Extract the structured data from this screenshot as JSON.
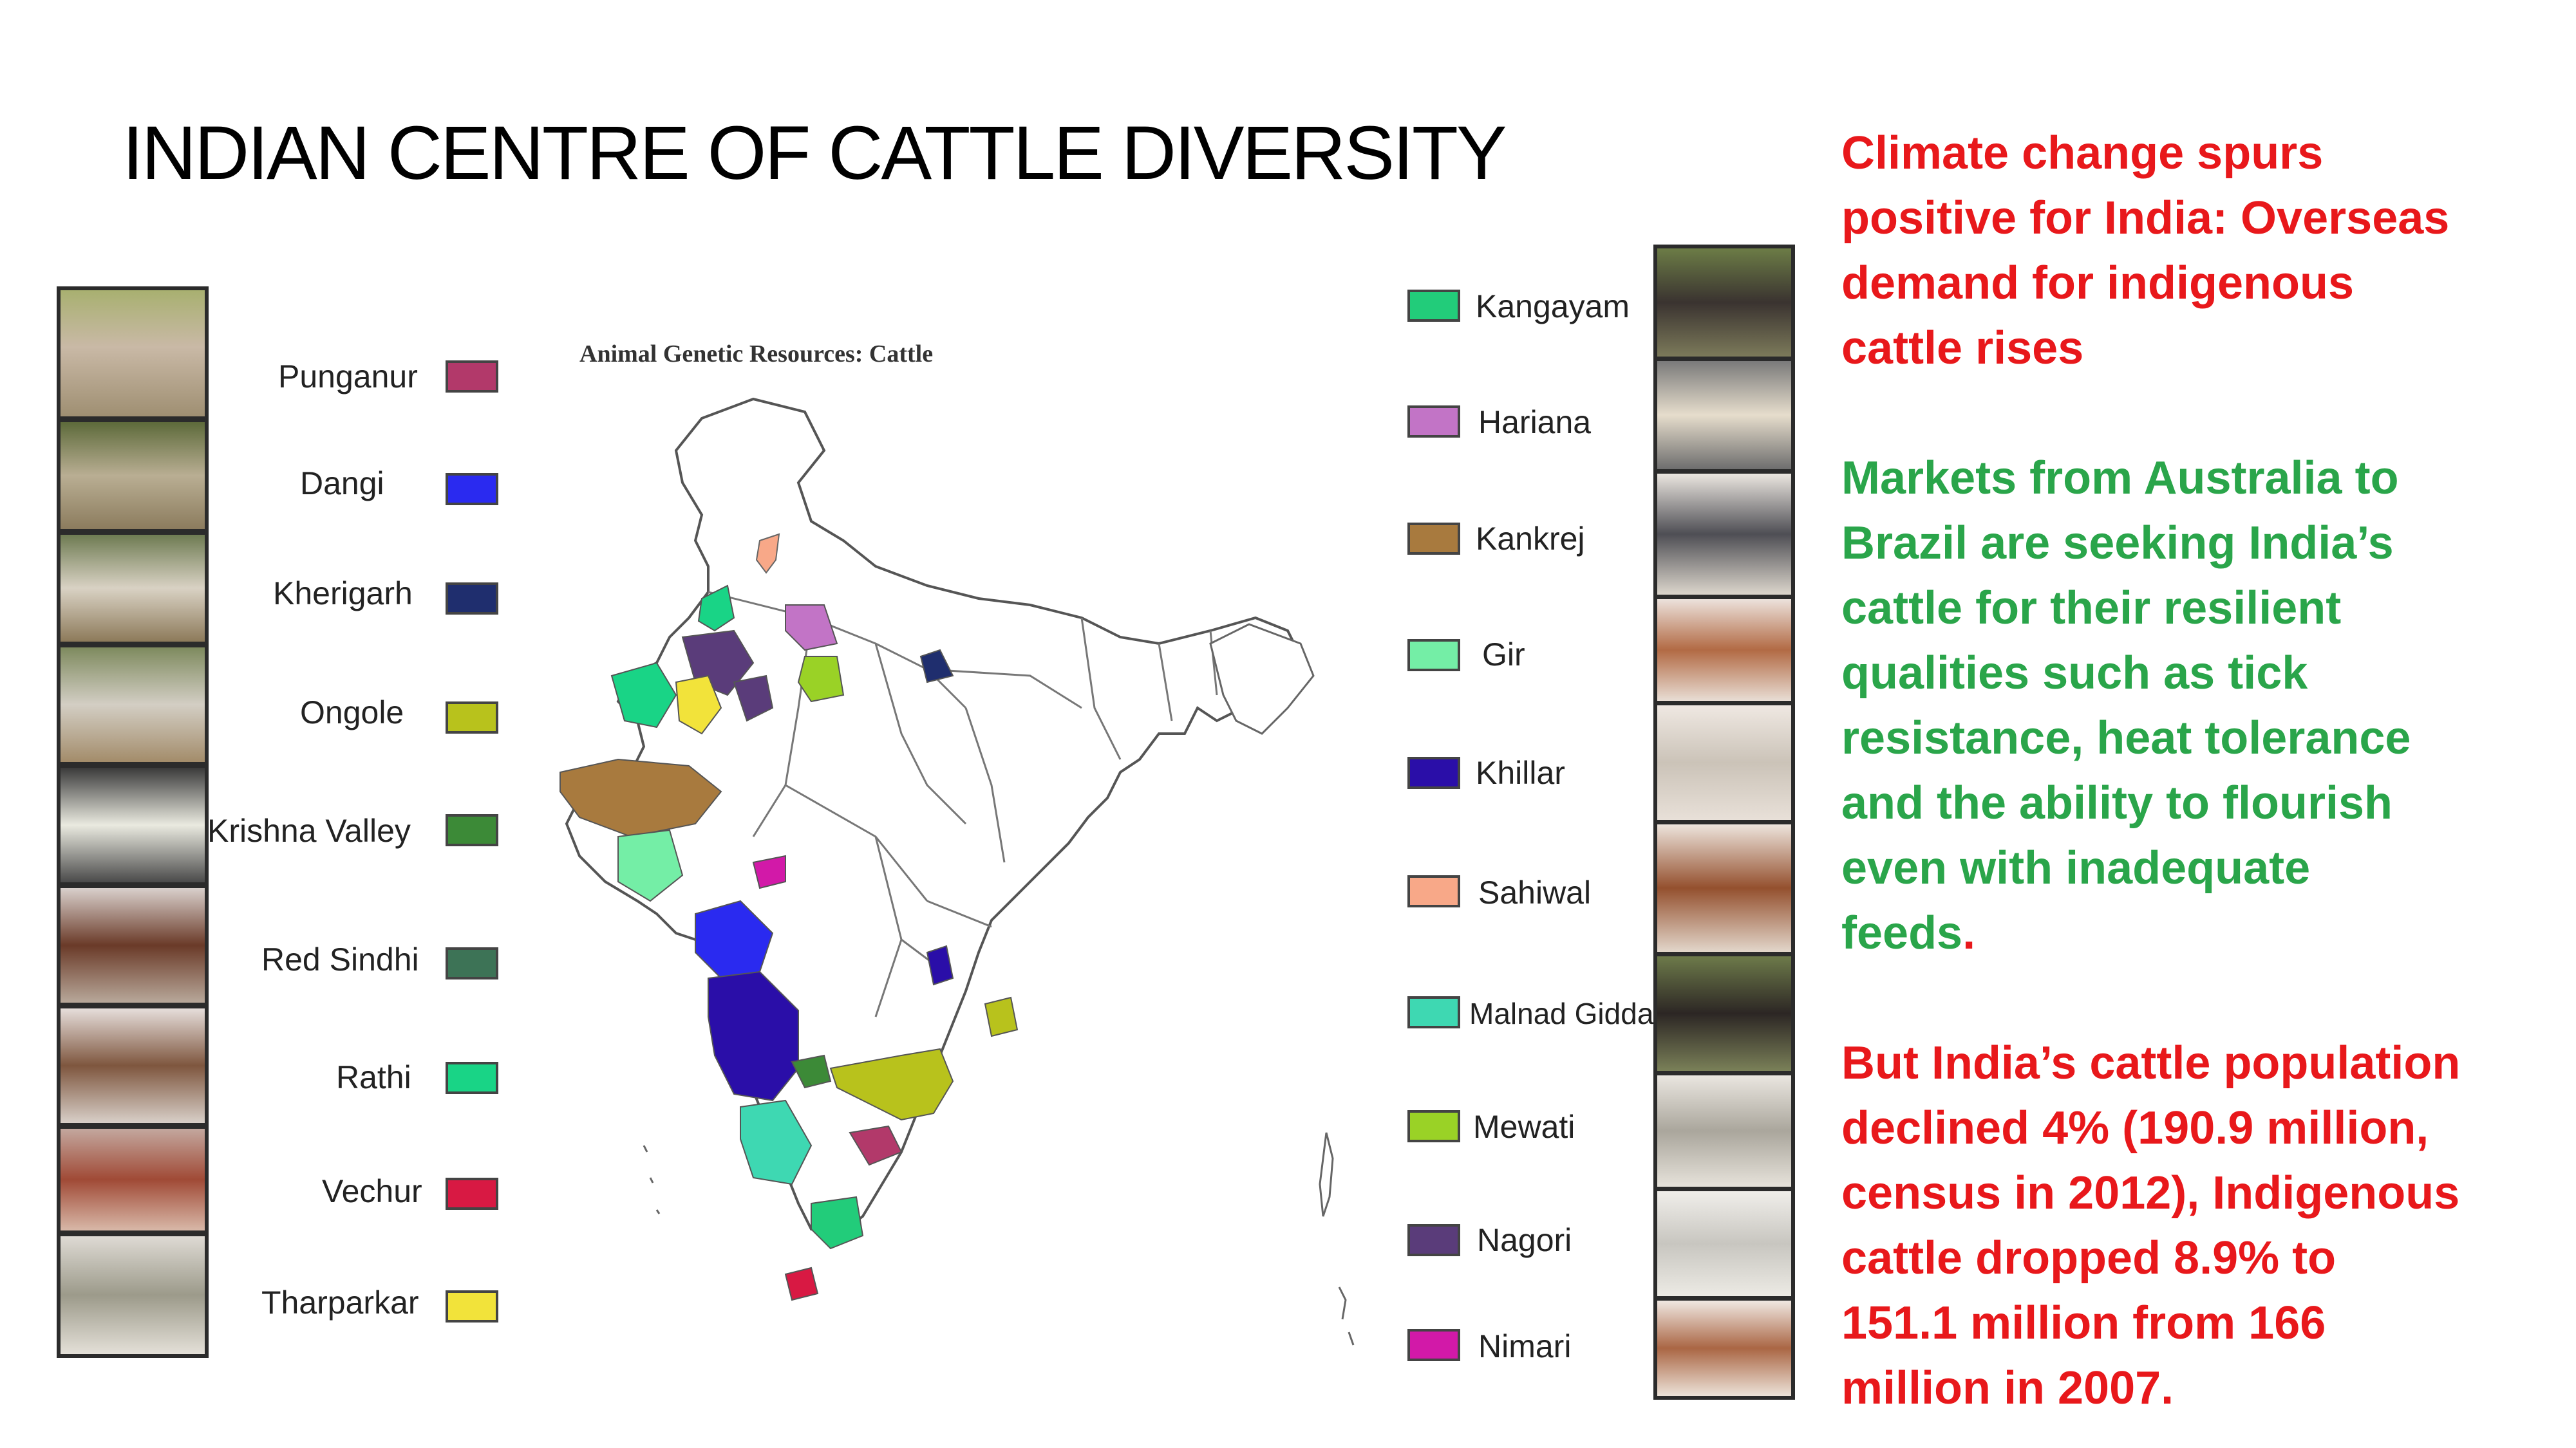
{
  "slide": {
    "title": "INDIAN CENTRE OF CATTLE DIVERSITY"
  },
  "map": {
    "caption": "Animal Genetic Resources: Cattle"
  },
  "legend_left": [
    {
      "name": "Punganur",
      "color": "#b2396a"
    },
    {
      "name": "Dangi",
      "color": "#2a2af0"
    },
    {
      "name": "Kherigarh",
      "color": "#1f2e6e"
    },
    {
      "name": "Ongole",
      "color": "#b8c21c"
    },
    {
      "name": "Krishna Valley",
      "color": "#3c8a37"
    },
    {
      "name": "Red Sindhi",
      "color": "#3d7356"
    },
    {
      "name": "Rathi",
      "color": "#19d486"
    },
    {
      "name": "Vechur",
      "color": "#d81943"
    },
    {
      "name": "Tharparkar",
      "color": "#f2e33a"
    }
  ],
  "legend_right": [
    {
      "name": "Kangayam",
      "color": "#22cc7a"
    },
    {
      "name": "Hariana",
      "color": "#c274c6"
    },
    {
      "name": "Kankrej",
      "color": "#a87a3e"
    },
    {
      "name": "Gir",
      "color": "#74eea6"
    },
    {
      "name": "Khillar",
      "color": "#2a0ea8"
    },
    {
      "name": "Sahiwal",
      "color": "#f8a888"
    },
    {
      "name": "Malnad Gidda",
      "color": "#3ed8b2"
    },
    {
      "name": "Mewati",
      "color": "#9ad226"
    },
    {
      "name": "Nagori",
      "color": "#5a3c7a"
    },
    {
      "name": "Nimari",
      "color": "#d219a8"
    }
  ],
  "text_panel": {
    "headline": [
      "Climate change spurs",
      "positive for India: Overseas",
      "demand for indigenous",
      "cattle rises"
    ],
    "body": [
      "Markets from Australia to",
      "Brazil are seeking India’s",
      "cattle for their resilient",
      "qualities such as tick",
      "resistance, heat tolerance",
      "and the ability to flourish",
      "even with inadequate"
    ],
    "body_last": "feeds",
    "body_period": ".",
    "stats": [
      "But India’s cattle population",
      "declined 4% (190.9 million,",
      "census in 2012), Indigenous",
      "cattle dropped 8.9% to",
      "151.1 million from 166",
      "million in 2007."
    ]
  },
  "colors": {
    "headline": "#e8181b",
    "body": "#2aa54a",
    "stats": "#e8181b"
  }
}
